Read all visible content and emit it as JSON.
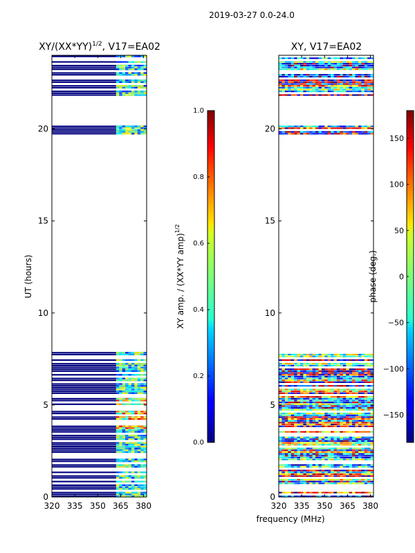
{
  "suptitle": "2019-03-27 0.0-24.0",
  "shared_xlabel": "frequency (MHz)",
  "chart_data": [
    {
      "type": "heatmap",
      "title_main": "XY/(XX*YY)",
      "title_sup": "1/2",
      "title_tail": ", V17=EA02",
      "xlabel": "",
      "ylabel": "UT (hours)",
      "xlim": [
        320,
        382
      ],
      "ylim": [
        0,
        24
      ],
      "xticks": [
        320,
        335,
        350,
        365,
        380
      ],
      "yticks": [
        0,
        5,
        10,
        15,
        20
      ],
      "observed_ut_ranges": [
        [
          0,
          7.9
        ],
        [
          19.7,
          20.2
        ],
        [
          21.8,
          24
        ]
      ],
      "colorbar": {
        "label_main": "XY amp. / (XX*YY amp)",
        "label_sup": "1/2",
        "range": [
          0.0,
          1.0
        ],
        "ticks": [
          "0.0",
          "0.2",
          "0.4",
          "0.6",
          "0.8",
          "1.0"
        ],
        "tick_values": [
          0.0,
          0.2,
          0.4,
          0.6,
          0.8,
          1.0
        ]
      }
    },
    {
      "type": "heatmap",
      "title_main": "XY, V17=EA02",
      "title_sup": "",
      "title_tail": "",
      "xlabel": "frequency (MHz)",
      "ylabel": "",
      "xlim": [
        320,
        382
      ],
      "ylim": [
        0,
        24
      ],
      "xticks": [
        320,
        335,
        350,
        365,
        380
      ],
      "yticks": [
        0,
        5,
        10,
        15,
        20
      ],
      "observed_ut_ranges": [
        [
          0,
          7.9
        ],
        [
          19.7,
          20.2
        ],
        [
          21.8,
          24
        ]
      ],
      "colorbar": {
        "label_main": "phase (deg.)",
        "label_sup": "",
        "range": [
          -180,
          180
        ],
        "ticks": [
          "−150",
          "−100",
          "−50",
          "0",
          "50",
          "100",
          "150"
        ],
        "tick_values": [
          -150,
          -100,
          -50,
          0,
          50,
          100,
          150
        ]
      }
    }
  ]
}
